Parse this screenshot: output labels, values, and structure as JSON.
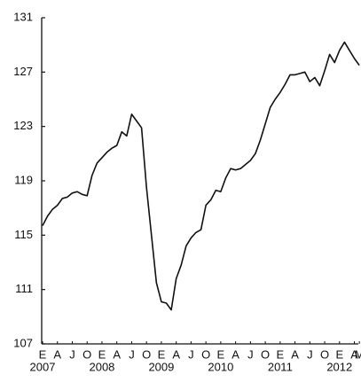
{
  "chart_data": {
    "type": "line",
    "categories": [
      "E",
      null,
      null,
      "A",
      null,
      null,
      "J",
      null,
      null,
      "O",
      null,
      null,
      "E",
      null,
      null,
      "A",
      null,
      null,
      "J",
      null,
      null,
      "O",
      null,
      null,
      "E",
      null,
      null,
      "A",
      null,
      null,
      "J",
      null,
      null,
      "O",
      null,
      null,
      "E",
      null,
      null,
      "A",
      null,
      null,
      "J",
      null,
      null,
      "O",
      null,
      null,
      "E",
      null,
      null,
      "A",
      null,
      null,
      "J",
      null,
      null,
      "O",
      null,
      null,
      "E",
      null,
      null,
      "A",
      "M"
    ],
    "years": [
      "2007",
      "2008",
      "2009",
      "2010",
      "2011",
      "2012"
    ],
    "values": [
      115.7,
      116.4,
      116.9,
      117.2,
      117.7,
      117.8,
      118.1,
      118.2,
      118.0,
      117.9,
      119.4,
      120.3,
      120.7,
      121.1,
      121.4,
      121.6,
      122.6,
      122.3,
      123.9,
      123.4,
      122.9,
      118.5,
      115.0,
      111.5,
      110.1,
      110.0,
      109.5,
      111.8,
      112.8,
      114.2,
      114.8,
      115.2,
      115.4,
      117.2,
      117.6,
      118.3,
      118.2,
      119.2,
      119.9,
      119.8,
      119.9,
      120.2,
      120.5,
      121.0,
      122.0,
      123.2,
      124.4,
      125.0,
      125.5,
      126.1,
      126.8,
      126.8,
      126.9,
      127.0,
      126.3,
      126.6,
      126.0,
      127.1,
      128.3,
      127.7,
      128.6,
      129.2,
      128.6,
      128.0,
      127.5
    ],
    "color": "#111111",
    "ylim": [
      107,
      131
    ],
    "yticks": [
      107,
      111,
      115,
      119,
      123,
      127,
      131
    ],
    "grid": false
  }
}
